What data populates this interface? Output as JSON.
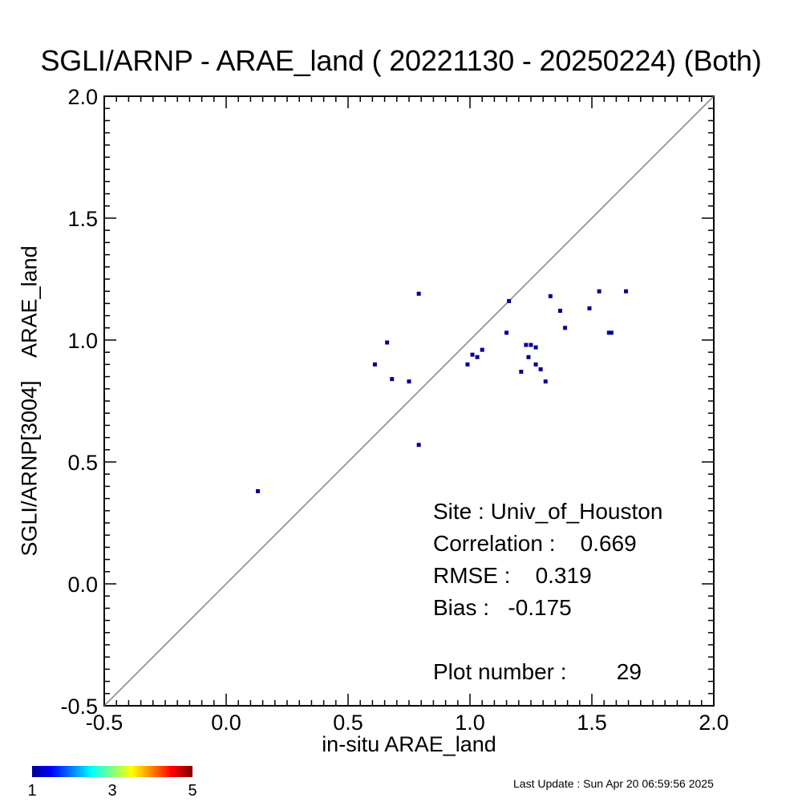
{
  "title": "SGLI/ARNP - ARAE_land ( 20221130 - 20250224) (Both)",
  "chart_data": {
    "type": "scatter",
    "xlabel": "in-situ ARAE_land",
    "ylabel": "SGLI/ARNP[3004]    ARAE_land",
    "xlim": [
      -0.5,
      2.0
    ],
    "ylim": [
      -0.5,
      2.0
    ],
    "x_ticks": [
      "-0.5",
      "0.0",
      "0.5",
      "1.0",
      "1.5",
      "2.0"
    ],
    "y_ticks": [
      "-0.5",
      "0.0",
      "0.5",
      "1.0",
      "1.5",
      "2.0"
    ],
    "reference_line": "1:1",
    "point_color": "#00008f",
    "points": [
      {
        "x": 0.13,
        "y": 0.38
      },
      {
        "x": 0.61,
        "y": 0.9
      },
      {
        "x": 0.66,
        "y": 0.99
      },
      {
        "x": 0.68,
        "y": 0.84
      },
      {
        "x": 0.75,
        "y": 0.83
      },
      {
        "x": 0.79,
        "y": 1.19
      },
      {
        "x": 0.79,
        "y": 0.57
      },
      {
        "x": 0.99,
        "y": 0.9
      },
      {
        "x": 1.01,
        "y": 0.94
      },
      {
        "x": 1.03,
        "y": 0.93
      },
      {
        "x": 1.05,
        "y": 0.96
      },
      {
        "x": 1.15,
        "y": 1.03
      },
      {
        "x": 1.16,
        "y": 1.16
      },
      {
        "x": 1.21,
        "y": 0.87
      },
      {
        "x": 1.23,
        "y": 0.98
      },
      {
        "x": 1.24,
        "y": 0.93
      },
      {
        "x": 1.25,
        "y": 0.98
      },
      {
        "x": 1.27,
        "y": 0.97
      },
      {
        "x": 1.27,
        "y": 0.9
      },
      {
        "x": 1.29,
        "y": 0.88
      },
      {
        "x": 1.31,
        "y": 0.83
      },
      {
        "x": 1.33,
        "y": 1.18
      },
      {
        "x": 1.37,
        "y": 1.12
      },
      {
        "x": 1.39,
        "y": 1.05
      },
      {
        "x": 1.49,
        "y": 1.13
      },
      {
        "x": 1.53,
        "y": 1.2
      },
      {
        "x": 1.57,
        "y": 1.03
      },
      {
        "x": 1.58,
        "y": 1.03
      },
      {
        "x": 1.64,
        "y": 1.2
      }
    ]
  },
  "stats": {
    "site": "Site : Univ_of_Houston",
    "correlation": "Correlation :    0.669",
    "rmse": "RMSE :    0.319",
    "bias": "Bias :   -0.175",
    "plot_number": "Plot number :        29"
  },
  "colorbar": {
    "labels": [
      "1",
      "3",
      "5"
    ],
    "min": 1,
    "max": 5
  },
  "last_update": "Last Update : Sun Apr 20 06:59:56 2025"
}
